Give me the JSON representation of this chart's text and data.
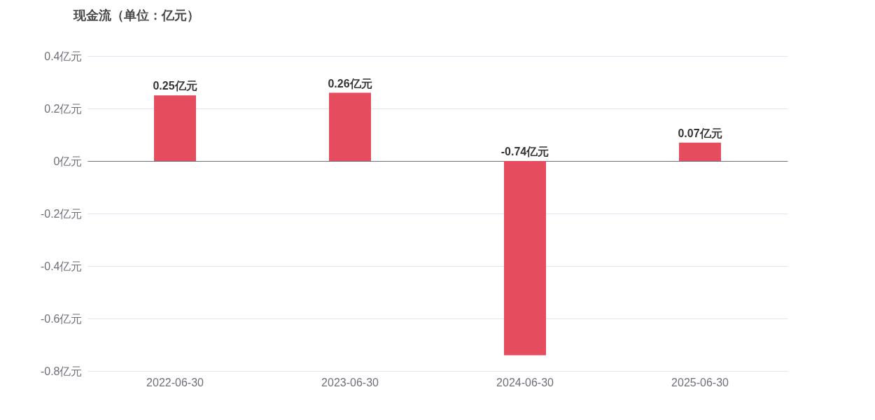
{
  "chart_data": {
    "type": "bar",
    "title": "现金流（单位：亿元）",
    "categories": [
      "2022-06-30",
      "2023-06-30",
      "2024-06-30",
      "2025-06-30"
    ],
    "values": [
      0.25,
      0.26,
      -0.74,
      0.07
    ],
    "value_labels": [
      "0.25亿元",
      "0.26亿元",
      "-0.74亿元",
      "0.07亿元"
    ],
    "color": "#e54d5f",
    "ylim": [
      -0.8,
      0.4
    ],
    "yticks": [
      {
        "value": 0.4,
        "label": "0.4亿元"
      },
      {
        "value": 0.2,
        "label": "0.2亿元"
      },
      {
        "value": 0,
        "label": "0亿元"
      },
      {
        "value": -0.2,
        "label": "-0.2亿元"
      },
      {
        "value": -0.4,
        "label": "-0.4亿元"
      },
      {
        "value": -0.6,
        "label": "-0.6亿元"
      },
      {
        "value": -0.8,
        "label": "-0.8亿元"
      }
    ],
    "grid": "y"
  }
}
